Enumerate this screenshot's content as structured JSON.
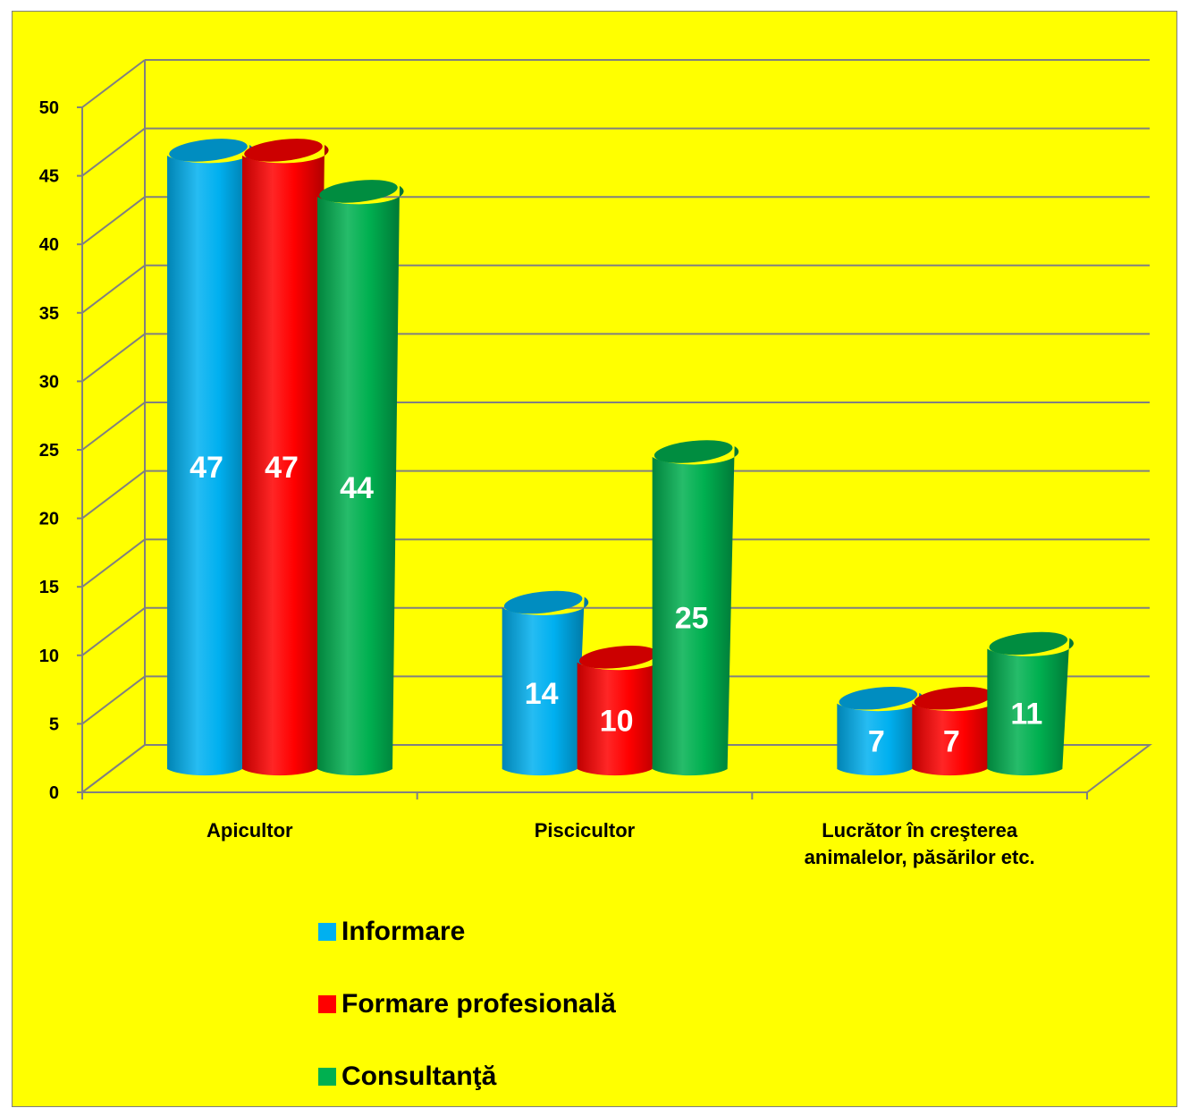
{
  "chart_data": {
    "type": "bar",
    "style": "3d-cylinder",
    "categories": [
      "Apicultor",
      "Piscicultor",
      "Lucrător în creşterea animalelor, păsărilor etc."
    ],
    "category_lines": [
      [
        "Apicultor"
      ],
      [
        "Piscicultor"
      ],
      [
        "Lucrător în creşterea",
        "animalelor, păsărilor etc."
      ]
    ],
    "series": [
      {
        "name": "Informare",
        "color": "#00b0f0",
        "values": [
          47,
          14,
          7
        ]
      },
      {
        "name": "Formare profesională",
        "color": "#ff0000",
        "values": [
          47,
          10,
          7
        ]
      },
      {
        "name": "Consultanţă",
        "color": "#00b050",
        "values": [
          44,
          25,
          11
        ]
      }
    ],
    "ylim": [
      0,
      50
    ],
    "yticks": [
      0,
      5,
      10,
      15,
      20,
      25,
      30,
      35,
      40,
      45,
      50
    ],
    "grid": true,
    "legend_position": "bottom",
    "background": "#ffff00"
  }
}
